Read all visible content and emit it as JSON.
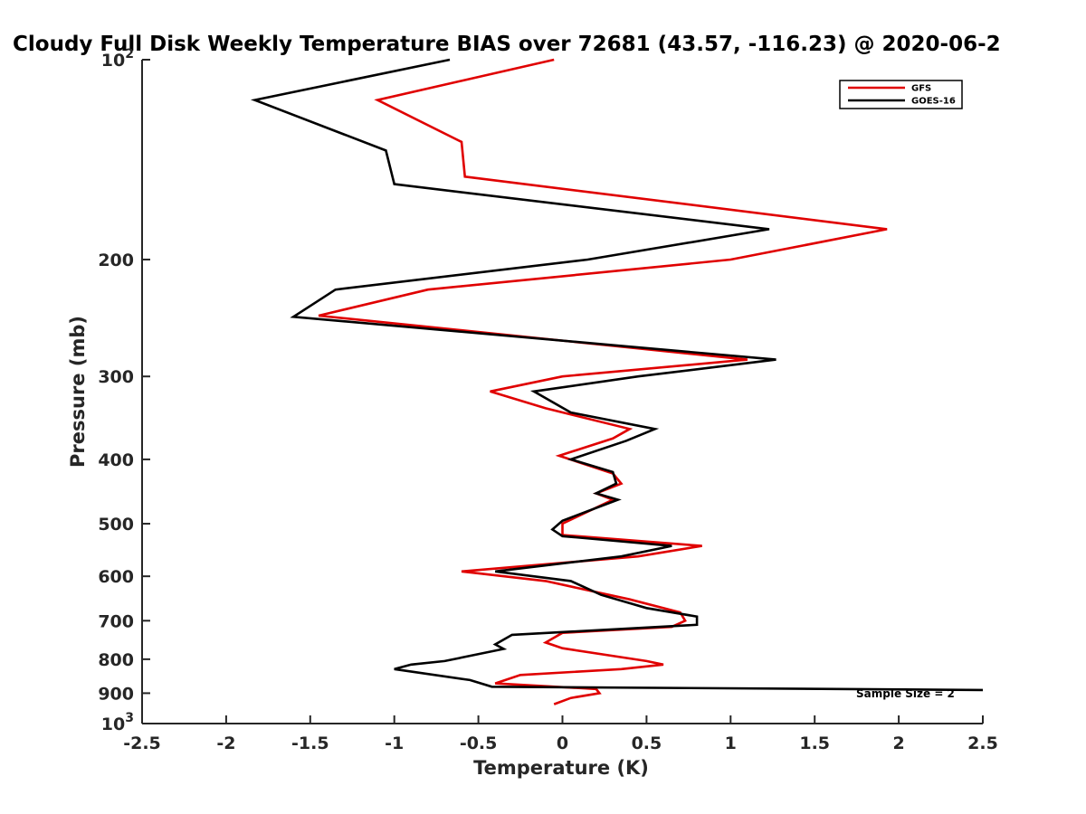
{
  "chart_data": {
    "type": "line",
    "title": "Cloudy Full Disk Weekly Temperature BIAS over 72681 (43.57, -116.23) @ 2020-06-2",
    "xlabel": "Temperature (K)",
    "ylabel": "Pressure (mb)",
    "xlim": [
      -2.5,
      2.5
    ],
    "ylim": [
      100,
      1000
    ],
    "yscale": "log",
    "y_reversed": true,
    "grid": false,
    "legend_position": "top-right",
    "x_ticks": [
      -2.5,
      -2,
      -1.5,
      -1,
      -0.5,
      0,
      0.5,
      1,
      1.5,
      2,
      2.5
    ],
    "x_tick_labels": [
      "-2.5",
      "-2",
      "-1.5",
      "-1",
      "-0.5",
      "0",
      "0.5",
      "1",
      "1.5",
      "2",
      "2.5"
    ],
    "y_ticks": [
      {
        "value": 100,
        "base": "10",
        "exp": "2"
      },
      {
        "value": 200,
        "base": "200",
        "exp": ""
      },
      {
        "value": 300,
        "base": "300",
        "exp": ""
      },
      {
        "value": 400,
        "base": "400",
        "exp": ""
      },
      {
        "value": 500,
        "base": "500",
        "exp": ""
      },
      {
        "value": 600,
        "base": "600",
        "exp": ""
      },
      {
        "value": 700,
        "base": "700",
        "exp": ""
      },
      {
        "value": 800,
        "base": "800",
        "exp": ""
      },
      {
        "value": 900,
        "base": "900",
        "exp": ""
      },
      {
        "value": 1000,
        "base": "10",
        "exp": "3"
      }
    ],
    "annotation": "Sample Size = 2",
    "series": [
      {
        "name": "GFS",
        "color": "#e00000",
        "points": [
          [
            -0.05,
            100
          ],
          [
            -1.1,
            115
          ],
          [
            -0.6,
            133
          ],
          [
            -0.58,
            150
          ],
          [
            1.93,
            180
          ],
          [
            1.0,
            200
          ],
          [
            -0.8,
            222
          ],
          [
            -1.45,
            243
          ],
          [
            1.1,
            283
          ],
          [
            0.0,
            300
          ],
          [
            -0.43,
            316
          ],
          [
            -0.1,
            335
          ],
          [
            0.4,
            360
          ],
          [
            0.3,
            372
          ],
          [
            -0.02,
            395
          ],
          [
            0.3,
            420
          ],
          [
            0.35,
            435
          ],
          [
            0.2,
            450
          ],
          [
            0.3,
            460
          ],
          [
            0.0,
            500
          ],
          [
            0.0,
            520
          ],
          [
            0.83,
            540
          ],
          [
            0.45,
            560
          ],
          [
            -0.6,
            590
          ],
          [
            -0.1,
            610
          ],
          [
            0.4,
            650
          ],
          [
            0.7,
            680
          ],
          [
            0.73,
            700
          ],
          [
            0.65,
            715
          ],
          [
            0.0,
            730
          ],
          [
            -0.1,
            755
          ],
          [
            0.0,
            770
          ],
          [
            0.5,
            805
          ],
          [
            0.6,
            815
          ],
          [
            0.35,
            828
          ],
          [
            -0.25,
            845
          ],
          [
            -0.4,
            870
          ],
          [
            0.2,
            887
          ],
          [
            0.22,
            900
          ],
          [
            0.05,
            915
          ],
          [
            -0.05,
            935
          ]
        ]
      },
      {
        "name": "GOES-16",
        "color": "#000000",
        "points": [
          [
            -0.67,
            100
          ],
          [
            -1.83,
            115
          ],
          [
            -1.05,
            137
          ],
          [
            -1.0,
            154
          ],
          [
            1.23,
            180
          ],
          [
            0.15,
            200
          ],
          [
            -1.35,
            222
          ],
          [
            -1.6,
            244
          ],
          [
            1.27,
            283
          ],
          [
            0.45,
            300
          ],
          [
            -0.17,
            316
          ],
          [
            0.05,
            340
          ],
          [
            0.55,
            360
          ],
          [
            0.38,
            375
          ],
          [
            0.05,
            400
          ],
          [
            0.3,
            418
          ],
          [
            0.32,
            435
          ],
          [
            0.2,
            450
          ],
          [
            0.33,
            460
          ],
          [
            0.0,
            495
          ],
          [
            -0.06,
            510
          ],
          [
            0.0,
            522
          ],
          [
            0.65,
            540
          ],
          [
            0.35,
            560
          ],
          [
            -0.4,
            590
          ],
          [
            0.05,
            610
          ],
          [
            0.23,
            640
          ],
          [
            0.5,
            670
          ],
          [
            0.8,
            690
          ],
          [
            0.8,
            710
          ],
          [
            -0.3,
            735
          ],
          [
            -0.4,
            760
          ],
          [
            -0.35,
            772
          ],
          [
            -0.7,
            805
          ],
          [
            -0.9,
            815
          ],
          [
            -1.0,
            828
          ],
          [
            -0.55,
            860
          ],
          [
            -0.42,
            880
          ],
          [
            2.5,
            890
          ]
        ]
      }
    ]
  }
}
